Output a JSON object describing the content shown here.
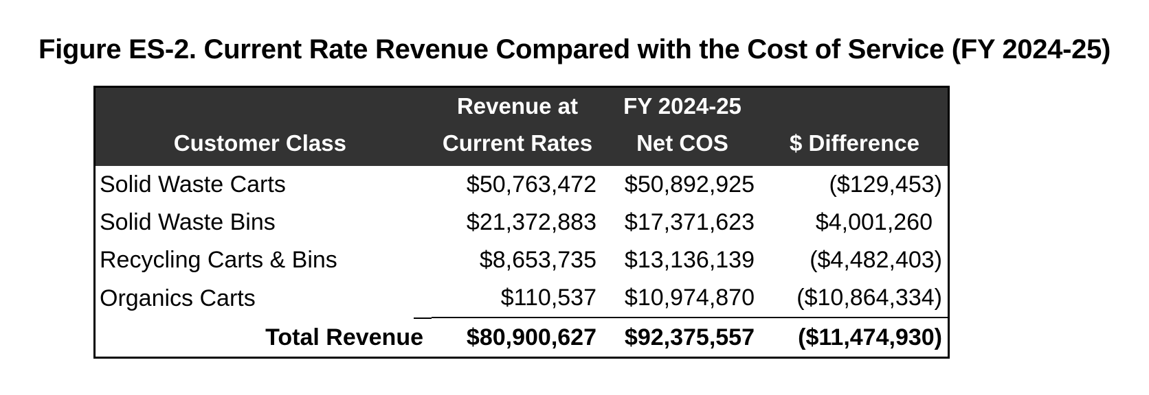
{
  "figure": {
    "title": "Figure ES-2. Current Rate Revenue Compared with the Cost of Service (FY 2024-25)"
  },
  "table": {
    "headers": {
      "customer_class": "Customer Class",
      "revenue_line1": "Revenue at",
      "revenue_line2": "Current Rates",
      "cos_line1": "FY 2024-25",
      "cos_line2": "Net COS",
      "difference": "$ Difference"
    },
    "rows": [
      {
        "label": "Solid Waste Carts",
        "revenue": "$50,763,472",
        "cos": "$50,892,925",
        "difference": "($129,453)"
      },
      {
        "label": "Solid Waste Bins",
        "revenue": "$21,372,883",
        "cos": "$17,371,623",
        "difference": "$4,001,260"
      },
      {
        "label": "Recycling Carts & Bins",
        "revenue": "$8,653,735",
        "cos": "$13,136,139",
        "difference": "($4,482,403)"
      },
      {
        "label": "Organics Carts",
        "revenue": "$110,537",
        "cos": "$10,974,870",
        "difference": "($10,864,334)"
      }
    ],
    "total": {
      "label": "Total Revenue",
      "revenue": "$80,900,627",
      "cos": "$92,375,557",
      "difference": "($11,474,930)"
    }
  },
  "colors": {
    "header_background": "#333333",
    "header_text": "#ffffff",
    "border": "#000000"
  }
}
